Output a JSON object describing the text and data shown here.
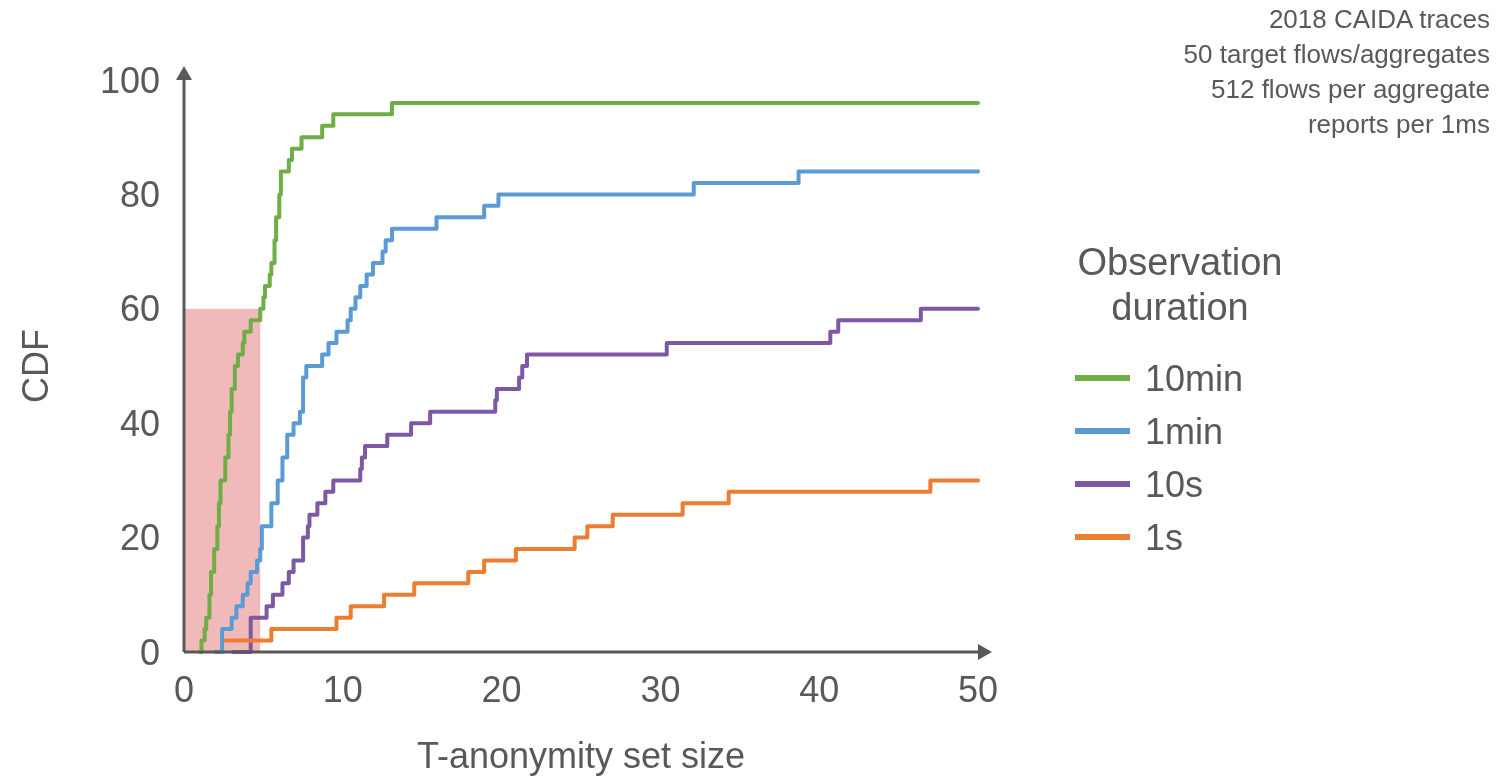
{
  "chart_data": {
    "type": "step",
    "xlabel": "T-anonymity set size",
    "ylabel": "CDF",
    "legend_title": "Observation duration",
    "legend": "right",
    "xlim": [
      0,
      50
    ],
    "xticks": [
      0,
      10,
      20,
      30,
      40,
      50
    ],
    "ylim": [
      0,
      100
    ],
    "yticks": [
      0,
      20,
      40,
      60,
      80,
      100
    ],
    "line_style": "solid",
    "marker": "none",
    "annotations": [
      "2018 CAIDA traces",
      "50 target flows/aggregates",
      "512 flows per aggregate",
      "reports per 1ms"
    ],
    "bands": [
      {
        "axis": "x",
        "from": 0,
        "to": 4.8,
        "color": "#e06666"
      }
    ],
    "series": [
      {
        "name": "10min",
        "color": "#70ad47",
        "x": [
          1.0,
          1.1,
          1.3,
          1.4,
          1.6,
          1.7,
          1.9,
          2.1,
          2.2,
          2.3,
          2.6,
          2.8,
          2.9,
          3.0,
          3.2,
          3.4,
          3.7,
          3.8,
          4.2,
          4.8,
          5.0,
          5.1,
          5.4,
          5.5,
          5.7,
          5.8,
          6.0,
          6.1,
          6.6,
          6.8,
          7.4,
          8.7,
          9.4,
          13.1,
          50
        ],
        "values": [
          0,
          0,
          2,
          4,
          6,
          10,
          14,
          18,
          22,
          26,
          30,
          34,
          38,
          42,
          46,
          50,
          52,
          54,
          56,
          58,
          60,
          62,
          64,
          66,
          68,
          72,
          76,
          80,
          84,
          86,
          88,
          90,
          92,
          94,
          96
        ]
      },
      {
        "name": "1min",
        "color": "#5b9bd5",
        "x": [
          2.0,
          2.4,
          3.0,
          3.3,
          3.7,
          4.0,
          4.2,
          4.6,
          4.8,
          4.9,
          5.5,
          5.9,
          6.2,
          6.5,
          6.9,
          7.3,
          7.5,
          7.7,
          8.7,
          9.1,
          9.6,
          10.3,
          10.5,
          10.8,
          11.1,
          11.5,
          11.9,
          12.5,
          12.7,
          13.1,
          15.9,
          18.9,
          19.8,
          32.1,
          38.7,
          50
        ],
        "values": [
          0,
          0,
          4,
          6,
          8,
          10,
          12,
          14,
          16,
          18,
          22,
          26,
          30,
          34,
          38,
          40,
          42,
          48,
          50,
          52,
          54,
          56,
          58,
          60,
          62,
          64,
          66,
          68,
          70,
          72,
          74,
          76,
          78,
          80,
          82,
          84
        ]
      },
      {
        "name": "10s",
        "color": "#7f58a3",
        "x": [
          3.1,
          4.2,
          5.2,
          5.6,
          6.2,
          6.6,
          6.9,
          7.5,
          7.8,
          7.9,
          8.4,
          8.9,
          9.4,
          11.1,
          11.2,
          11.4,
          12.8,
          14.3,
          15.5,
          19.6,
          19.7,
          21.1,
          21.3,
          21.6,
          30.4,
          40.7,
          41.2,
          46.4,
          50
        ],
        "values": [
          0,
          0,
          6,
          8,
          10,
          12,
          14,
          16,
          20,
          22,
          24,
          26,
          28,
          30,
          32,
          34,
          36,
          38,
          40,
          42,
          44,
          46,
          48,
          50,
          52,
          54,
          56,
          58,
          60
        ]
      },
      {
        "name": "1s",
        "color": "#ed7d31",
        "x": [
          2.6,
          5.5,
          9.6,
          10.5,
          12.6,
          14.5,
          17.9,
          18.9,
          20.9,
          24.6,
          25.4,
          27.0,
          31.4,
          34.3,
          47.0,
          50
        ],
        "values": [
          2,
          2,
          4,
          6,
          8,
          10,
          12,
          14,
          16,
          18,
          20,
          22,
          24,
          26,
          28,
          30
        ]
      }
    ]
  }
}
